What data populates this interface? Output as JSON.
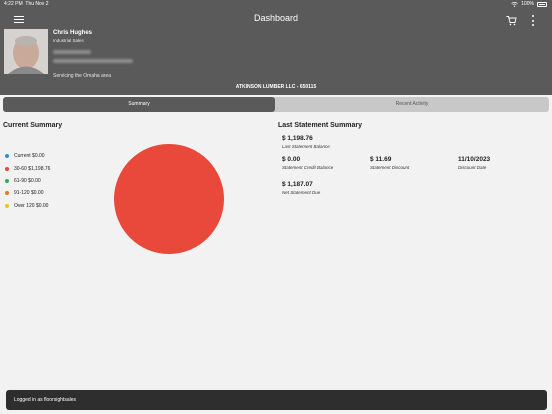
{
  "status_bar": {
    "time": "4:22 PM",
    "date": "Thu Nov 2",
    "battery": "100%"
  },
  "header": {
    "title": "Dashboard"
  },
  "user": {
    "name": "Chris Hughes",
    "title": "Industrial Sales",
    "servicing": "Servicing the Omaha area",
    "account": "ATKINSON LUMBER LLC - 650115"
  },
  "tabs": [
    {
      "label": "Summary",
      "active": true
    },
    {
      "label": "Recent Activity",
      "active": false
    }
  ],
  "current_summary": {
    "title": "Current Summary",
    "legend": [
      {
        "label": "Current $0.00",
        "color": "#2d8fd5"
      },
      {
        "label": "30-60 $1,198.76",
        "color": "#e8493a"
      },
      {
        "label": "61-90 $0.00",
        "color": "#2eb34f"
      },
      {
        "label": "91-120 $0.00",
        "color": "#e8762b"
      },
      {
        "label": "Over 120 $0.00",
        "color": "#f0c419"
      }
    ]
  },
  "chart_data": {
    "type": "pie",
    "categories": [
      "Current",
      "30-60",
      "61-90",
      "91-120",
      "Over 120"
    ],
    "values": [
      0.0,
      1198.76,
      0.0,
      0.0,
      0.0
    ],
    "colors": [
      "#2d8fd5",
      "#e8493a",
      "#2eb34f",
      "#e8762b",
      "#f0c419"
    ]
  },
  "last_statement": {
    "title": "Last Statement Summary",
    "balance": {
      "value": "$ 1,198.76",
      "label": "Last Statement Balance"
    },
    "credit": {
      "value": "$ 0.00",
      "label": "Statement Credit Balance"
    },
    "discount": {
      "value": "$ 11.69",
      "label": "Statement Discount"
    },
    "discount_date": {
      "value": "11/10/2023",
      "label": "Discount Date"
    },
    "net_due": {
      "value": "$ 1,187.07",
      "label": "Net Statement Due"
    }
  },
  "toast": {
    "text": "Logged in as floorsightsales"
  }
}
